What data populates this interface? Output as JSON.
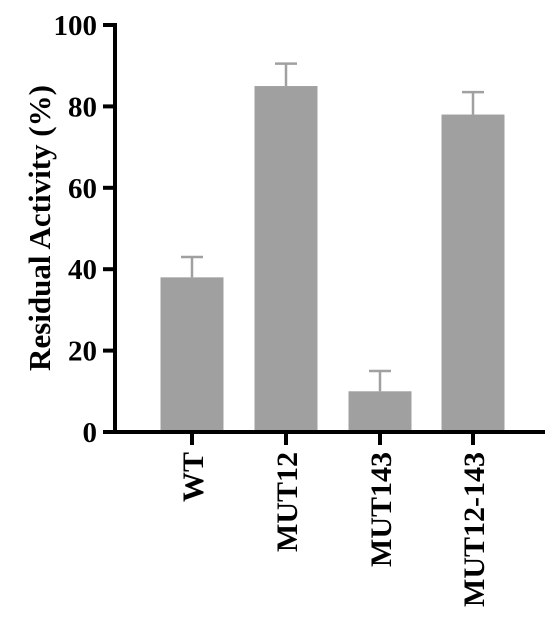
{
  "chart_data": {
    "type": "bar",
    "title": "",
    "xlabel": "",
    "ylabel": "Residual Activity (%)",
    "categories": [
      "WT",
      "MUT12",
      "MUT143",
      "MUT12-143"
    ],
    "values": [
      38,
      85,
      10,
      78
    ],
    "error": [
      5,
      5.5,
      5,
      5.5
    ],
    "ylim": [
      0,
      100
    ],
    "yticks": [
      "0",
      "20",
      "40",
      "60",
      "80",
      "100"
    ],
    "grid": false,
    "bar_color": "#a0a0a0",
    "axis_color": "#000000"
  }
}
